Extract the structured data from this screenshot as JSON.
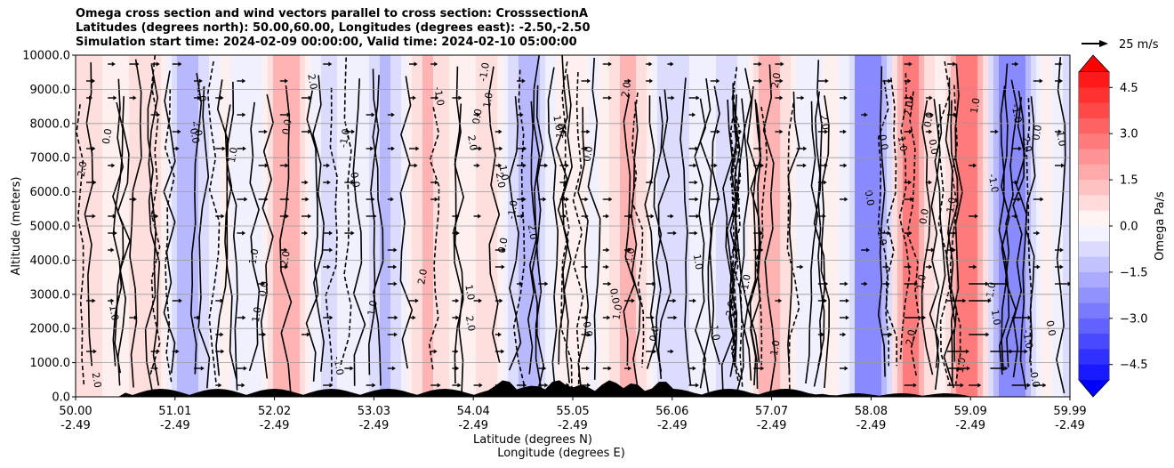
{
  "chart_data": {
    "type": "heatmap",
    "title_lines": [
      "Omega cross section and wind vectors parallel to cross section: CrosssectionA",
      "Latitudes (degrees north): 50.00,60.00, Longitudes (degrees east): -2.50,-2.50",
      "Simulation start time: 2024-02-09 00:00:00, Valid time: 2024-02-10 05:00:00"
    ],
    "ylabel": "Altitude (meters)",
    "xlabel": "Latitude (degrees N)",
    "xlabel2": "Longitude (degrees E)",
    "ylim": [
      0,
      10000
    ],
    "y_ticks": [
      "0.0",
      "1000.0",
      "2000.0",
      "3000.0",
      "4000.0",
      "5000.0",
      "6000.0",
      "7000.0",
      "8000.0",
      "9000.0",
      "10000.0"
    ],
    "x_lat_ticks": [
      "50.00",
      "51.01",
      "52.02",
      "53.03",
      "54.04",
      "55.05",
      "56.06",
      "57.07",
      "58.08",
      "59.09",
      "59.99"
    ],
    "x_lon_ticks": [
      "-2.49",
      "-2.49",
      "-2.49",
      "-2.49",
      "-2.49",
      "-2.49",
      "-2.49",
      "-2.49",
      "-2.49",
      "-2.49",
      "-2.49"
    ],
    "colorbar": {
      "label": "Omega Pa/s",
      "range": [
        -5,
        5
      ],
      "ticks": [
        "4.5",
        "3.0",
        "1.5",
        "0.0",
        "−1.5",
        "−3.0",
        "−4.5"
      ],
      "tick_values": [
        4.5,
        3.0,
        1.5,
        0.0,
        -1.5,
        -3.0,
        -4.5
      ],
      "colormap": "bwr",
      "extend": "both"
    },
    "reference_vector_label": "25 m/s",
    "contour_labels": [
      "0.0",
      "1.0",
      "-1.0",
      "2.0"
    ],
    "grid": true
  }
}
